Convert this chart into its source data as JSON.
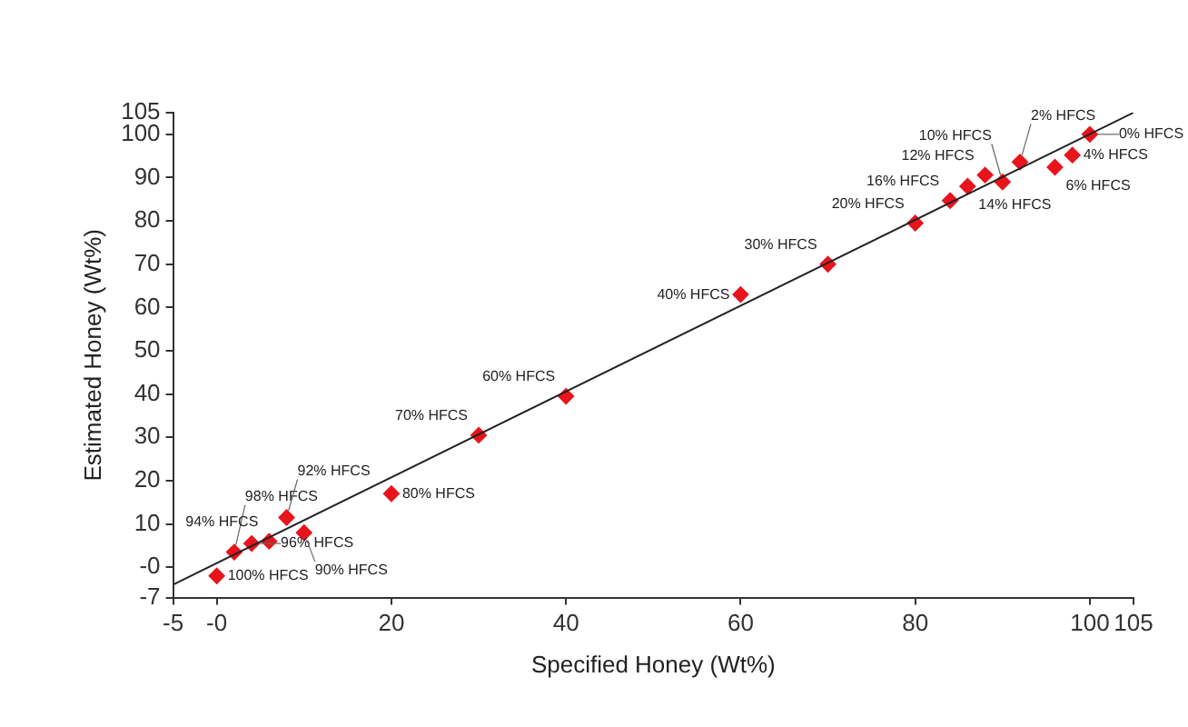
{
  "chart_data": {
    "type": "scatter",
    "xlabel": "Specified Honey (Wt%)",
    "ylabel": "Estimated Honey (Wt%)",
    "xlim": [
      -5,
      105
    ],
    "ylim": [
      -7,
      105
    ],
    "xticks": [
      -5,
      {
        "value": 0,
        "label": "-0"
      },
      20,
      40,
      60,
      80,
      100,
      105
    ],
    "yticks": [
      -7,
      {
        "value": 0,
        "label": "-0"
      },
      10,
      20,
      30,
      40,
      50,
      60,
      70,
      80,
      90,
      100,
      105
    ],
    "grid": false,
    "legend": false,
    "marker": "diamond",
    "series": [
      {
        "type": "scatter",
        "color": "#e8141c",
        "x": [
          0,
          2,
          4,
          6,
          8,
          10,
          20,
          30,
          40,
          60,
          70,
          80,
          84,
          86,
          88,
          90,
          92,
          96,
          98,
          100
        ],
        "values": [
          -2,
          3.5,
          5.5,
          6,
          11.5,
          8,
          17,
          30.5,
          39.5,
          63,
          70,
          79.5,
          84.7,
          88,
          90.6,
          89,
          93.6,
          92.4,
          95.2,
          100
        ]
      },
      {
        "type": "line",
        "color": "#222222",
        "marker": "none",
        "x": [
          -5,
          105
        ],
        "values": [
          -4,
          105
        ]
      }
    ],
    "annotations": [
      {
        "text": "100% HFCS",
        "x": 0,
        "y": -2
      },
      {
        "text": "98% HFCS",
        "x": 2,
        "y": 3.5
      },
      {
        "text": "96% HFCS",
        "x": 4,
        "y": 5.5
      },
      {
        "text": "94% HFCS",
        "x": 6,
        "y": 6
      },
      {
        "text": "92% HFCS",
        "x": 8,
        "y": 11.5
      },
      {
        "text": "90% HFCS",
        "x": 10,
        "y": 8
      },
      {
        "text": "80% HFCS",
        "x": 20,
        "y": 17
      },
      {
        "text": "70% HFCS",
        "x": 30,
        "y": 30.5
      },
      {
        "text": "60% HFCS",
        "x": 40,
        "y": 39.5
      },
      {
        "text": "40% HFCS",
        "x": 60,
        "y": 63
      },
      {
        "text": "30% HFCS",
        "x": 70,
        "y": 70
      },
      {
        "text": "20% HFCS",
        "x": 80,
        "y": 79.5
      },
      {
        "text": "16% HFCS",
        "x": 84,
        "y": 84.7
      },
      {
        "text": "14% HFCS",
        "x": 86,
        "y": 88
      },
      {
        "text": "12% HFCS",
        "x": 88,
        "y": 90.6
      },
      {
        "text": "10% HFCS",
        "x": 90,
        "y": 89
      },
      {
        "text": "2% HFCS",
        "x": 92,
        "y": 93.6
      },
      {
        "text": "6% HFCS",
        "x": 96,
        "y": 92.4
      },
      {
        "text": "4% HFCS",
        "x": 98,
        "y": 95.2
      },
      {
        "text": "0% HFCS",
        "x": 100,
        "y": 100
      }
    ]
  }
}
